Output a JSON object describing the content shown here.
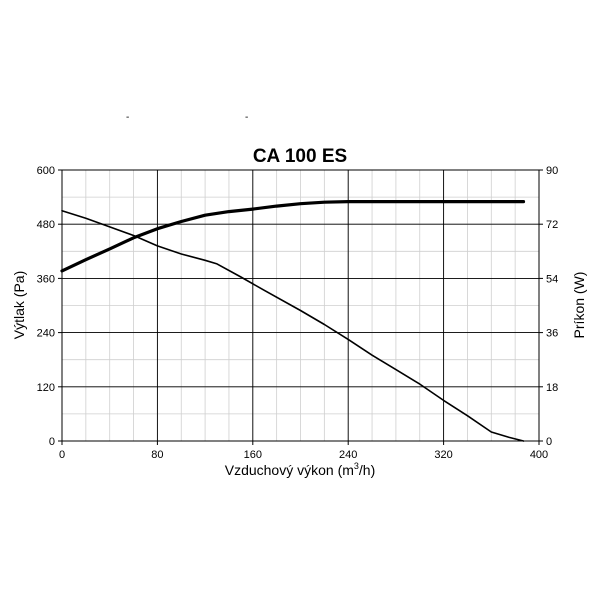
{
  "marks": {
    "left": "-",
    "right": "-"
  },
  "chart_data": {
    "type": "line",
    "title": "CA 100 ES",
    "xlabel": "Vzduchový výkon (m",
    "xlabel_sup": "3",
    "xlabel_tail": "/h)",
    "ylabel": "Výtlak (Pa)",
    "y2label": "Príkon (W)",
    "xlim": [
      0,
      400
    ],
    "ylim": [
      0,
      600
    ],
    "y2lim": [
      0,
      90
    ],
    "x_ticks": [
      "0",
      "80",
      "160",
      "240",
      "320",
      "400"
    ],
    "y_ticks": [
      "0",
      "120",
      "240",
      "360",
      "480",
      "600"
    ],
    "y2_ticks": [
      "0",
      "18",
      "36",
      "54",
      "72",
      "90"
    ],
    "x_minor_step": 20,
    "y_minor_step": 60,
    "grid": true,
    "series": [
      {
        "axis": "left",
        "color": "#000000",
        "x": [
          0,
          20,
          40,
          60,
          80,
          100,
          120,
          130,
          150,
          170,
          200,
          220,
          240,
          260,
          280,
          300,
          320,
          340,
          360,
          375,
          387
        ],
        "y": [
          510,
          493,
          474,
          455,
          432,
          414,
          400,
          392,
          363,
          333,
          289,
          258,
          225,
          190,
          158,
          126,
          90,
          56,
          20,
          8,
          0
        ]
      },
      {
        "axis": "right",
        "color": "#000000",
        "x": [
          0,
          20,
          40,
          60,
          80,
          100,
          120,
          140,
          160,
          180,
          200,
          220,
          240,
          260,
          280,
          300,
          320,
          340,
          360,
          380,
          387
        ],
        "y": [
          56.5,
          60.2,
          63.8,
          67.5,
          70.5,
          72.9,
          75.0,
          76.2,
          77.0,
          78.0,
          78.8,
          79.3,
          79.5,
          79.5,
          79.5,
          79.5,
          79.5,
          79.5,
          79.5,
          79.5,
          79.5
        ]
      }
    ]
  }
}
